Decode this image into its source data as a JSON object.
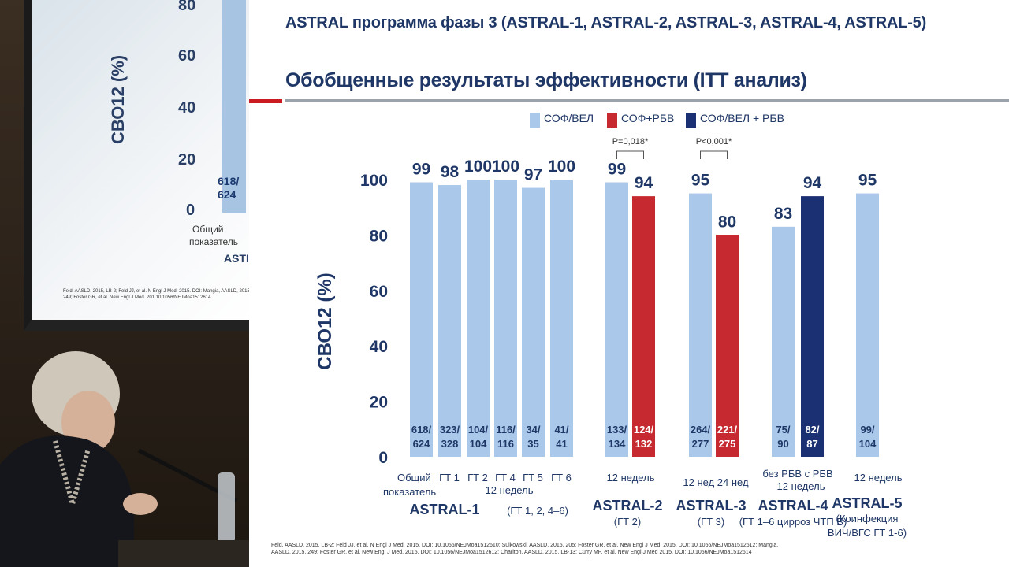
{
  "slide": {
    "title": "ASTRAL программа фазы 3 (ASTRAL-1, ASTRAL-2, ASTRAL-3, ASTRAL-4, ASTRAL-5)",
    "subtitle": "Обобщенные результаты эффективности (ITT анализ)",
    "legend": [
      {
        "label": "СОФ/ВЕЛ",
        "color": "#a9c8ea"
      },
      {
        "label": "СОФ+РБВ",
        "color": "#c62a30"
      },
      {
        "label": "СОФ/ВЕЛ + РБВ",
        "color": "#1b2f73"
      }
    ],
    "reference": "Feld, AASLD, 2015, LB-2; Feld JJ, et al. N Engl J Med. 2015. DOI: 10.1056/NEJMoa1512610; Sulkowski, AASLD, 2015, 205; Foster GR, et al. New Engl J Med. 2015. DOI: 10.1056/NEJMoa1512612; Mangia, AASLD, 2015, 249; Foster GR, et al. New Engl J Med. 2015. DOI: 10.1056/NEJMoa1512612; Charlton, AASLD, 2015, LB-13; Curry MP, et al. New Engl J Med 2015. DOI: 10.1056/NEJMoa1512614"
  },
  "left_screen": {
    "ylabel": "СВО12 (%)",
    "ticks": [
      "80",
      "60",
      "40",
      "20",
      "0"
    ],
    "count_top": "618/",
    "count_bottom": "624",
    "cat1": "Общий",
    "cat2": "показатель",
    "study": "ASTI",
    "ref": "Feld, AASLD, 2015, LB-2; Feld JJ, et al. N Engl J Med. 2015. DOI: Mangia, AASLD, 2015, 249; Foster GR, et al. New Engl J Med. 201 10.1056/NEJMoa1512614"
  },
  "chart_data": {
    "type": "bar",
    "ylabel": "СВО12 (%)",
    "ylim": [
      0,
      100
    ],
    "yticks": [
      0,
      20,
      40,
      60,
      80,
      100
    ],
    "colors": {
      "sof_vel": "#a9c8ea",
      "sof_rbv": "#c62a30",
      "sof_vel_rbv": "#1b2f73"
    },
    "bars": [
      {
        "value": 99,
        "label": "99",
        "series": "sof_vel",
        "count_top": "618/",
        "count_bottom": "624"
      },
      {
        "value": 98,
        "label": "98",
        "series": "sof_vel",
        "count_top": "323/",
        "count_bottom": "328"
      },
      {
        "value": 100,
        "label": "100",
        "series": "sof_vel",
        "count_top": "104/",
        "count_bottom": "104"
      },
      {
        "value": 100,
        "label": "100",
        "series": "sof_vel",
        "count_top": "116/",
        "count_bottom": "116"
      },
      {
        "value": 97,
        "label": "97",
        "series": "sof_vel",
        "count_top": "34/",
        "count_bottom": "35"
      },
      {
        "value": 100,
        "label": "100",
        "series": "sof_vel",
        "count_top": "41/",
        "count_bottom": "41"
      },
      {
        "value": 99,
        "label": "99",
        "series": "sof_vel",
        "count_top": "133/",
        "count_bottom": "134"
      },
      {
        "value": 94,
        "label": "94",
        "series": "sof_rbv",
        "count_top": "124/",
        "count_bottom": "132"
      },
      {
        "value": 95,
        "label": "95",
        "series": "sof_vel",
        "count_top": "264/",
        "count_bottom": "277"
      },
      {
        "value": 80,
        "label": "80",
        "series": "sof_rbv",
        "count_top": "221/",
        "count_bottom": "275"
      },
      {
        "value": 83,
        "label": "83",
        "series": "sof_vel_rbv_light",
        "count_top": "75/",
        "count_bottom": "90"
      },
      {
        "value": 94,
        "label": "94",
        "series": "sof_vel_rbv",
        "count_top": "82/",
        "count_bottom": "87"
      },
      {
        "value": 95,
        "label": "95",
        "series": "sof_vel",
        "count_top": "99/",
        "count_bottom": "104"
      }
    ],
    "category_labels": [
      {
        "text": "Общий",
        "line2": "показатель"
      },
      {
        "text": "ГТ 1"
      },
      {
        "text": "ГТ 2"
      },
      {
        "text": "ГТ 4"
      },
      {
        "text": "ГТ 5"
      },
      {
        "text": "ГТ 6"
      },
      {
        "text": "12 недель"
      },
      {
        "text": "12 нед 24 нед"
      },
      {
        "text": "без РБВ  с РБВ"
      },
      {
        "text": "12 недель"
      }
    ],
    "sublabels": [
      "12 недель",
      "12 недель"
    ],
    "studies": [
      {
        "name": "ASTRAL-1",
        "note": "(ГТ 1, 2, 4–6)"
      },
      {
        "name": "ASTRAL-2",
        "note": "(ГТ 2)"
      },
      {
        "name": "ASTRAL-3",
        "note": "(ГТ 3)"
      },
      {
        "name": "ASTRAL-4",
        "note": "(ГТ 1–6 цирроз ЧТП B)"
      },
      {
        "name": "ASTRAL-5",
        "note": "(Коинфекция",
        "note2": "ВИЧ/ВГС ГТ 1-6)"
      }
    ],
    "pvalues": [
      "P=0,018*",
      "P<0,001*"
    ]
  }
}
